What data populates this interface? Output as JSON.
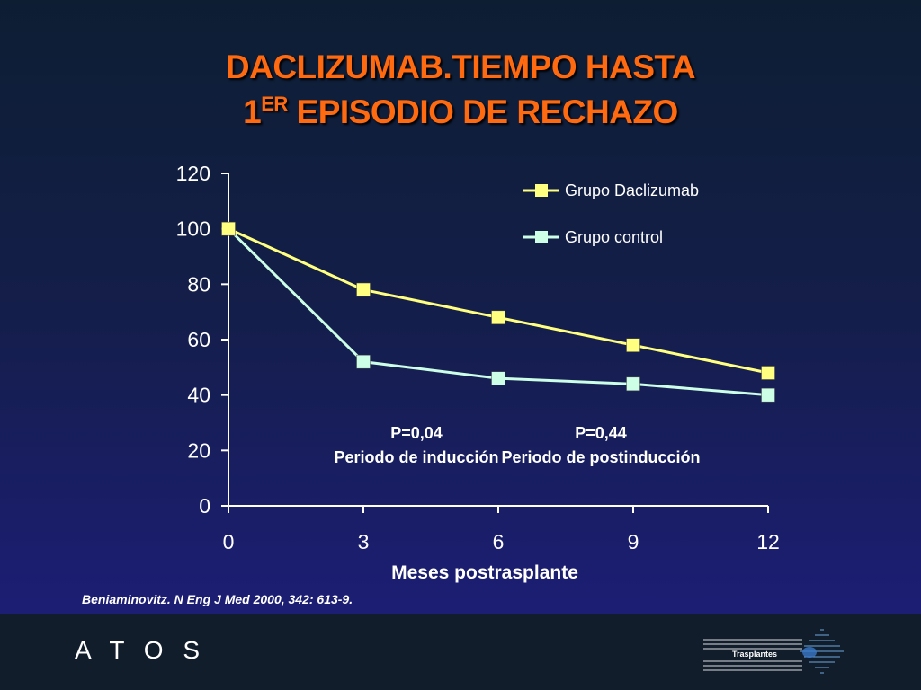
{
  "slide": {
    "title_line1": "DACLIZUMAB.TIEMPO HASTA",
    "title_line2_prefix": "1",
    "title_line2_sup": "ER",
    "title_line2_rest": " EPISODIO DE RECHAZO",
    "citation": "Beniaminovitz. N Eng J Med 2000, 342: 613-9."
  },
  "footer": {
    "brand": "A T O S",
    "logo_text": "Trasplantes"
  },
  "chart_data": {
    "type": "line",
    "title": "",
    "xlabel": "Meses postrasplante",
    "ylabel": "",
    "x": [
      0,
      3,
      6,
      9,
      12
    ],
    "xlim": [
      0,
      12
    ],
    "ylim": [
      0,
      120
    ],
    "x_ticks": [
      "0",
      "3",
      "6",
      "9",
      "12"
    ],
    "y_ticks": [
      "0",
      "20",
      "40",
      "60",
      "80",
      "100",
      "120"
    ],
    "grid": false,
    "legend_position": "top-right",
    "series": [
      {
        "name": "Grupo Daclizumab",
        "values": [
          100,
          78,
          68,
          58,
          48
        ],
        "color": "#ffff80"
      },
      {
        "name": "Grupo control",
        "values": [
          100,
          52,
          46,
          44,
          40
        ],
        "color": "#ccffe6"
      }
    ],
    "annotations": [
      {
        "line1": "P=0,04",
        "line2": "Periodo de inducción",
        "x": 4.5
      },
      {
        "line1": "P=0,44",
        "line2": "Periodo de postinducción",
        "x": 8.6
      }
    ]
  }
}
